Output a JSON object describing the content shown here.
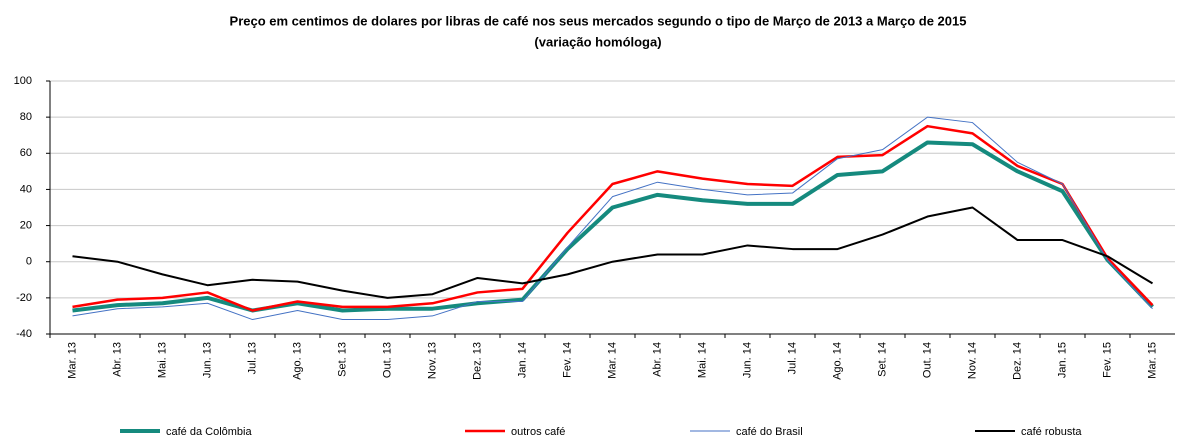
{
  "chart_data": {
    "type": "line",
    "title": "Preço em centimos de dolares por libras de café nos seus mercados segundo o tipo de Março de 2013 a Março de 2015",
    "subtitle": "(variação homóloga)",
    "categories": [
      "Mar. 13",
      "Abr. 13",
      "Mai. 13",
      "Jun. 13",
      "Jul. 13",
      "Ago. 13",
      "Set. 13",
      "Out. 13",
      "Nov. 13",
      "Dez. 13",
      "Jan. 14",
      "Fev. 14",
      "Mar. 14",
      "Abr. 14",
      "Mai. 14",
      "Jun. 14",
      "Jul. 14",
      "Ago. 14",
      "Set. 14",
      "Out. 14",
      "Nov. 14",
      "Dez. 14",
      "Jan. 15",
      "Fev. 15",
      "Mar. 15"
    ],
    "series": [
      {
        "name": "café da Colômbia",
        "color": "#158a7e",
        "values": [
          -27,
          -24,
          -23,
          -20,
          -27,
          -23,
          -27,
          -26,
          -26,
          -23,
          -21,
          7,
          30,
          37,
          34,
          32,
          32,
          48,
          50,
          66,
          65,
          50,
          39,
          1,
          -25
        ]
      },
      {
        "name": "outros café",
        "color": "#ff0000",
        "values": [
          -25,
          -21,
          -20,
          -17,
          -27,
          -22,
          -25,
          -25,
          -23,
          -17,
          -15,
          16,
          43,
          50,
          46,
          43,
          42,
          58,
          59,
          75,
          71,
          53,
          43,
          2,
          -24
        ]
      },
      {
        "name": "café do Brasil",
        "color": "#4472c4",
        "values": [
          -30,
          -26,
          -25,
          -23,
          -32,
          -27,
          -32,
          -32,
          -30,
          -22,
          -22,
          8,
          36,
          44,
          40,
          37,
          38,
          57,
          62,
          80,
          77,
          55,
          43,
          1,
          -26
        ]
      },
      {
        "name": "café robusta",
        "color": "#000000",
        "values": [
          3,
          0,
          -7,
          -13,
          -10,
          -11,
          -16,
          -20,
          -18,
          -9,
          -12,
          -7,
          0,
          4,
          4,
          9,
          7,
          7,
          15,
          25,
          30,
          12,
          12,
          3,
          -12
        ]
      }
    ],
    "ylim": [
      -40,
      100
    ],
    "yticks": [
      -40,
      -20,
      0,
      20,
      40,
      60,
      80,
      100
    ],
    "grid": true
  }
}
